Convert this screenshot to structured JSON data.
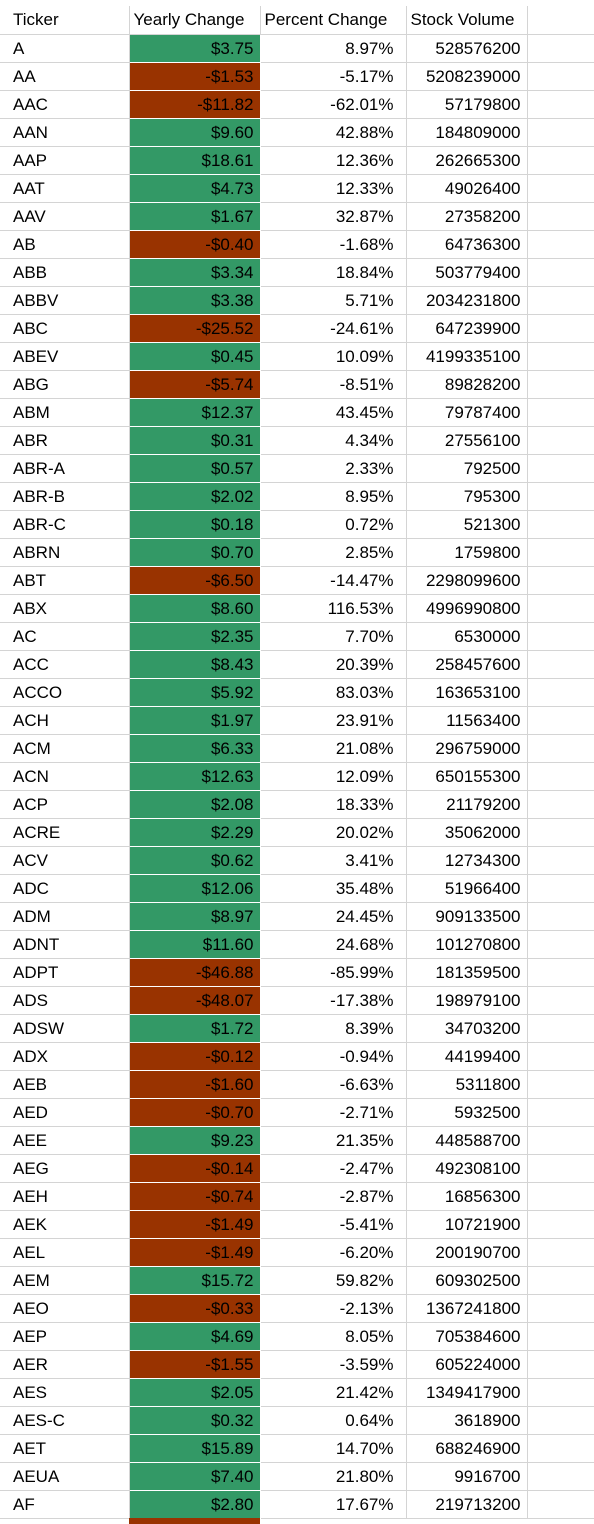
{
  "sheet": {
    "headers": [
      "Ticker",
      "Yearly Change",
      "Percent Change",
      "Stock Volume"
    ],
    "colors": {
      "positive": "#339966",
      "negative": "#993300",
      "gridline": "#d4d4d4"
    },
    "rows": [
      [
        "A",
        "$3.75",
        "8.97%",
        "528576200"
      ],
      [
        "AA",
        "-$1.53",
        "-5.17%",
        "5208239000"
      ],
      [
        "AAC",
        "-$11.82",
        "-62.01%",
        "57179800"
      ],
      [
        "AAN",
        "$9.60",
        "42.88%",
        "184809000"
      ],
      [
        "AAP",
        "$18.61",
        "12.36%",
        "262665300"
      ],
      [
        "AAT",
        "$4.73",
        "12.33%",
        "49026400"
      ],
      [
        "AAV",
        "$1.67",
        "32.87%",
        "27358200"
      ],
      [
        "AB",
        "-$0.40",
        "-1.68%",
        "64736300"
      ],
      [
        "ABB",
        "$3.34",
        "18.84%",
        "503779400"
      ],
      [
        "ABBV",
        "$3.38",
        "5.71%",
        "2034231800"
      ],
      [
        "ABC",
        "-$25.52",
        "-24.61%",
        "647239900"
      ],
      [
        "ABEV",
        "$0.45",
        "10.09%",
        "4199335100"
      ],
      [
        "ABG",
        "-$5.74",
        "-8.51%",
        "89828200"
      ],
      [
        "ABM",
        "$12.37",
        "43.45%",
        "79787400"
      ],
      [
        "ABR",
        "$0.31",
        "4.34%",
        "27556100"
      ],
      [
        "ABR-A",
        "$0.57",
        "2.33%",
        "792500"
      ],
      [
        "ABR-B",
        "$2.02",
        "8.95%",
        "795300"
      ],
      [
        "ABR-C",
        "$0.18",
        "0.72%",
        "521300"
      ],
      [
        "ABRN",
        "$0.70",
        "2.85%",
        "1759800"
      ],
      [
        "ABT",
        "-$6.50",
        "-14.47%",
        "2298099600"
      ],
      [
        "ABX",
        "$8.60",
        "116.53%",
        "4996990800"
      ],
      [
        "AC",
        "$2.35",
        "7.70%",
        "6530000"
      ],
      [
        "ACC",
        "$8.43",
        "20.39%",
        "258457600"
      ],
      [
        "ACCO",
        "$5.92",
        "83.03%",
        "163653100"
      ],
      [
        "ACH",
        "$1.97",
        "23.91%",
        "11563400"
      ],
      [
        "ACM",
        "$6.33",
        "21.08%",
        "296759000"
      ],
      [
        "ACN",
        "$12.63",
        "12.09%",
        "650155300"
      ],
      [
        "ACP",
        "$2.08",
        "18.33%",
        "21179200"
      ],
      [
        "ACRE",
        "$2.29",
        "20.02%",
        "35062000"
      ],
      [
        "ACV",
        "$0.62",
        "3.41%",
        "12734300"
      ],
      [
        "ADC",
        "$12.06",
        "35.48%",
        "51966400"
      ],
      [
        "ADM",
        "$8.97",
        "24.45%",
        "909133500"
      ],
      [
        "ADNT",
        "$11.60",
        "24.68%",
        "101270800"
      ],
      [
        "ADPT",
        "-$46.88",
        "-85.99%",
        "181359500"
      ],
      [
        "ADS",
        "-$48.07",
        "-17.38%",
        "198979100"
      ],
      [
        "ADSW",
        "$1.72",
        "8.39%",
        "34703200"
      ],
      [
        "ADX",
        "-$0.12",
        "-0.94%",
        "44199400"
      ],
      [
        "AEB",
        "-$1.60",
        "-6.63%",
        "5311800"
      ],
      [
        "AED",
        "-$0.70",
        "-2.71%",
        "5932500"
      ],
      [
        "AEE",
        "$9.23",
        "21.35%",
        "448588700"
      ],
      [
        "AEG",
        "-$0.14",
        "-2.47%",
        "492308100"
      ],
      [
        "AEH",
        "-$0.74",
        "-2.87%",
        "16856300"
      ],
      [
        "AEK",
        "-$1.49",
        "-5.41%",
        "10721900"
      ],
      [
        "AEL",
        "-$1.49",
        "-6.20%",
        "200190700"
      ],
      [
        "AEM",
        "$15.72",
        "59.82%",
        "609302500"
      ],
      [
        "AEO",
        "-$0.33",
        "-2.13%",
        "1367241800"
      ],
      [
        "AEP",
        "$4.69",
        "8.05%",
        "705384600"
      ],
      [
        "AER",
        "-$1.55",
        "-3.59%",
        "605224000"
      ],
      [
        "AES",
        "$2.05",
        "21.42%",
        "1349417900"
      ],
      [
        "AES-C",
        "$0.32",
        "0.64%",
        "3618900"
      ],
      [
        "AET",
        "$15.89",
        "14.70%",
        "688246900"
      ],
      [
        "AEUA",
        "$7.40",
        "21.80%",
        "9916700"
      ],
      [
        "AF",
        "$2.80",
        "17.67%",
        "219713200"
      ]
    ]
  }
}
